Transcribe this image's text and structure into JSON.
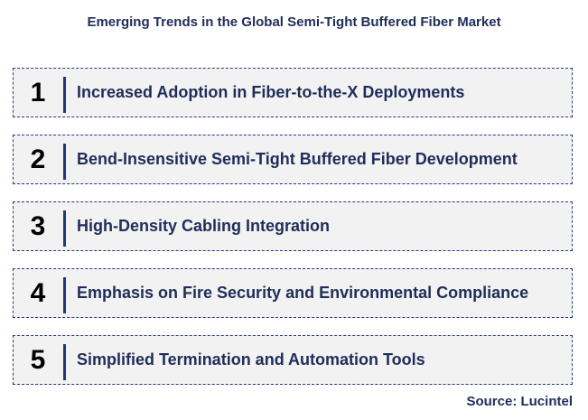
{
  "title": "Emerging Trends in the Global Semi-Tight Buffered Fiber Market",
  "items": [
    {
      "number": "1",
      "label": "Increased Adoption in Fiber-to-the-X Deployments"
    },
    {
      "number": "2",
      "label": "Bend-Insensitive Semi-Tight Buffered Fiber Development"
    },
    {
      "number": "3",
      "label": "High-Density Cabling Integration"
    },
    {
      "number": "4",
      "label": "Emphasis on Fire Security and Environmental Compliance"
    },
    {
      "number": "5",
      "label": "Simplified Termination and Automation Tools"
    }
  ],
  "source": "Source: Lucintel",
  "colors": {
    "text": "#1f2d5a",
    "box_fill": "#f2f2f2",
    "box_border": "#243b7a",
    "divider": "#1f3a7a"
  }
}
